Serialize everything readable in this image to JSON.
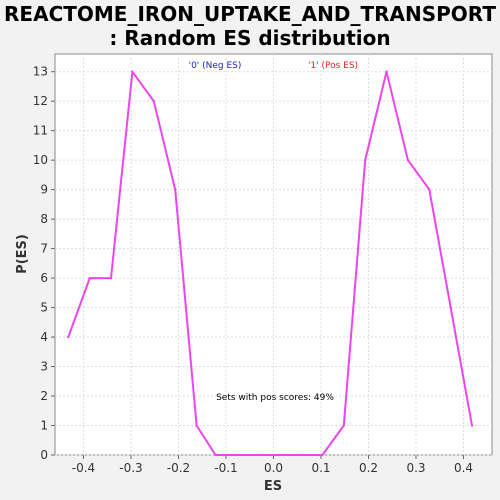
{
  "chart_data": {
    "type": "line",
    "title_line1": "REACTOME_IRON_UPTAKE_AND_TRANSPORT",
    "title_line2": ": Random ES distribution",
    "xlabel": "ES",
    "ylabel": "P(ES)",
    "xlim": [
      -0.46,
      0.46
    ],
    "ylim": [
      0,
      13.6
    ],
    "x_ticks": [
      "-0.4",
      "-0.3",
      "-0.2",
      "-0.1",
      "0.0",
      "0.1",
      "0.2",
      "0.3",
      "0.4"
    ],
    "y_ticks": [
      "0",
      "1",
      "2",
      "3",
      "4",
      "5",
      "6",
      "7",
      "8",
      "9",
      "10",
      "11",
      "12",
      "13"
    ],
    "grid": true,
    "legend": [
      {
        "label": "'0' (Neg ES)",
        "color": "#2222cc"
      },
      {
        "label": "'1' (Pos ES)",
        "color": "#dd2222"
      }
    ],
    "annotation": "Sets with pos scores: 49%",
    "series": [
      {
        "color": "#ee44ee",
        "x": [
          -0.432,
          -0.387,
          -0.342,
          -0.297,
          -0.252,
          -0.207,
          -0.162,
          -0.122,
          -0.077,
          -0.032,
          0.013,
          0.058,
          0.103,
          0.148,
          0.193,
          0.238,
          0.283,
          0.328,
          0.373,
          0.418
        ],
        "y": [
          4,
          6,
          6,
          13,
          12,
          9,
          1,
          0,
          0,
          0,
          0,
          0,
          0,
          1,
          10,
          13,
          10,
          9,
          5,
          1
        ]
      }
    ]
  }
}
